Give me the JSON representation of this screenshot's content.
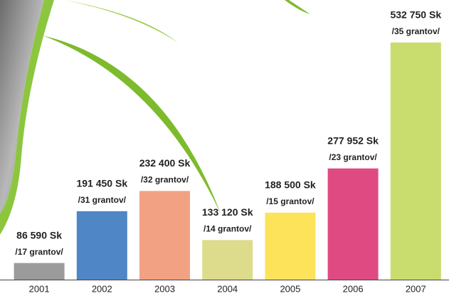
{
  "chart_data": {
    "type": "bar",
    "categories": [
      "2001",
      "2002",
      "2003",
      "2004",
      "2005",
      "2006",
      "2007"
    ],
    "values": [
      86590,
      191450,
      232400,
      133120,
      188500,
      277952,
      532750
    ],
    "value_labels": [
      "86 590 Sk",
      "191 450 Sk",
      "232 400 Sk",
      "133 120 Sk",
      "188 500 Sk",
      "277 952 Sk",
      "532 750 Sk"
    ],
    "sublabels": [
      "/17 grantov/",
      "/31 grantov/",
      "/32 grantov/",
      "/14 grantov/",
      "/15 grantov/",
      "/23 grantov/",
      "/35 grantov/"
    ],
    "colors": [
      "#9b9b9b",
      "#4f86c6",
      "#f2a283",
      "#dcdc8c",
      "#fde35a",
      "#e04a82",
      "#c9dc6e"
    ],
    "ylim": [
      53000,
      600000
    ]
  }
}
